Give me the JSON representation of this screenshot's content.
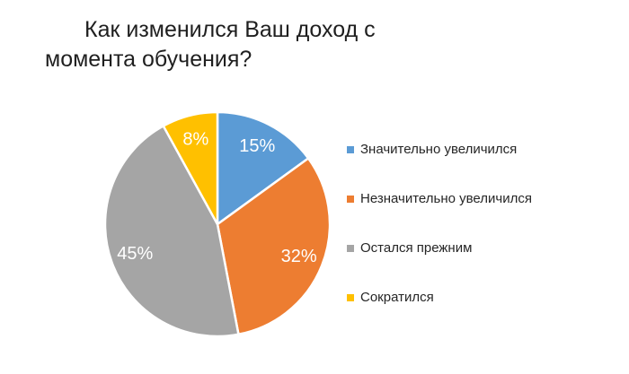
{
  "chart_data": {
    "type": "pie",
    "title": "Как изменился Ваш доход с момента обучения?",
    "categories": [
      "Значительно увеличился",
      "Незначительно увеличился",
      "Остался прежним",
      "Сократился"
    ],
    "values": [
      15,
      32,
      45,
      8
    ],
    "labels": [
      "15%",
      "32%",
      "45%",
      "8%"
    ],
    "colors": [
      "#5B9BD5",
      "#ED7D31",
      "#A5A5A5",
      "#FFC000"
    ],
    "unit": "percent",
    "start_angle_deg": 0,
    "direction": "clockwise",
    "slice_border_color": "#FFFFFF",
    "data_label_color": "#FFFFFF",
    "legend_position": "right",
    "background_color": "#FFFFFF",
    "title_color": "#1F1F1F",
    "legend_text_color": "#262626"
  }
}
